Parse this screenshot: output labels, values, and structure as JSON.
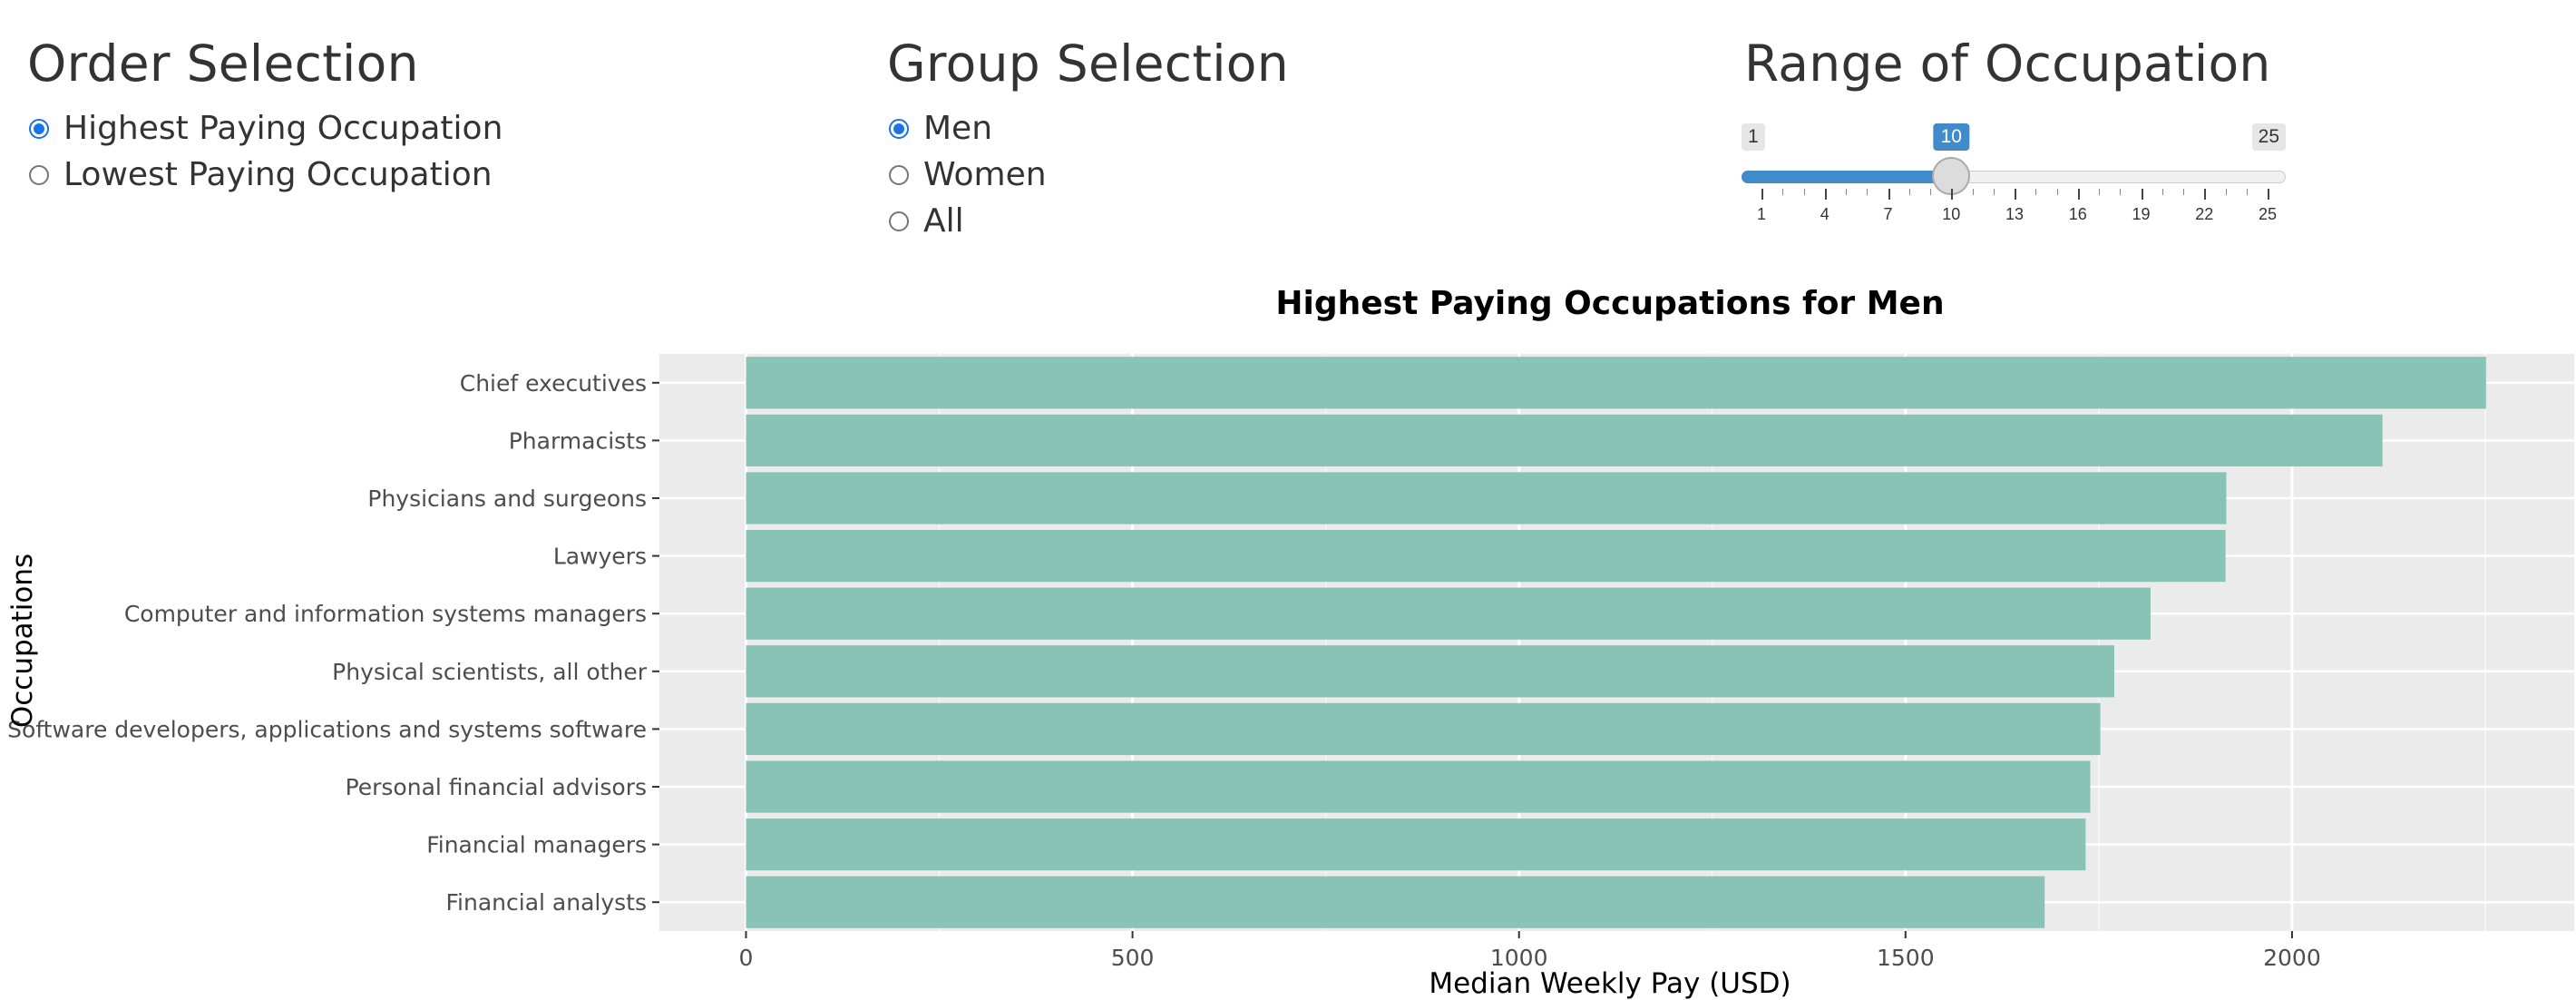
{
  "order_panel": {
    "title": "Order Selection",
    "options": [
      {
        "label": "Highest Paying Occupation",
        "checked": true
      },
      {
        "label": "Lowest Paying Occupation",
        "checked": false
      }
    ]
  },
  "group_panel": {
    "title": "Group Selection",
    "options": [
      {
        "label": "Men",
        "checked": true
      },
      {
        "label": "Women",
        "checked": false
      },
      {
        "label": "All",
        "checked": false
      }
    ]
  },
  "range_panel": {
    "title": "Range of Occupation",
    "min_label": "1",
    "max_label": "25",
    "value_label": "10",
    "min": 1,
    "max": 25,
    "value": 10,
    "tick_labels": [
      "1",
      "4",
      "7",
      "10",
      "13",
      "16",
      "19",
      "22",
      "25"
    ],
    "accent_color": "#428bca"
  },
  "chart_data": {
    "type": "bar",
    "orientation": "horizontal",
    "title": "Highest Paying Occupations for Men",
    "xlabel": "Median Weekly Pay (USD)",
    "ylabel": "Occupations",
    "categories": [
      "Chief executives",
      "Pharmacists",
      "Physicians and surgeons",
      "Lawyers",
      "Computer and information systems managers",
      "Physical scientists, all other",
      "Software developers, applications and systems software",
      "Personal financial advisors",
      "Financial managers",
      "Financial analysts"
    ],
    "values": [
      2251,
      2117,
      1915,
      1914,
      1817,
      1770,
      1752,
      1739,
      1733,
      1680
    ],
    "x_ticks": [
      "0",
      "500",
      "1000",
      "1500",
      "2000"
    ],
    "xlim": [
      -112,
      2365
    ],
    "grid": true,
    "bar_color": "#88c3b5",
    "plot_bg": "#ebebeb"
  }
}
